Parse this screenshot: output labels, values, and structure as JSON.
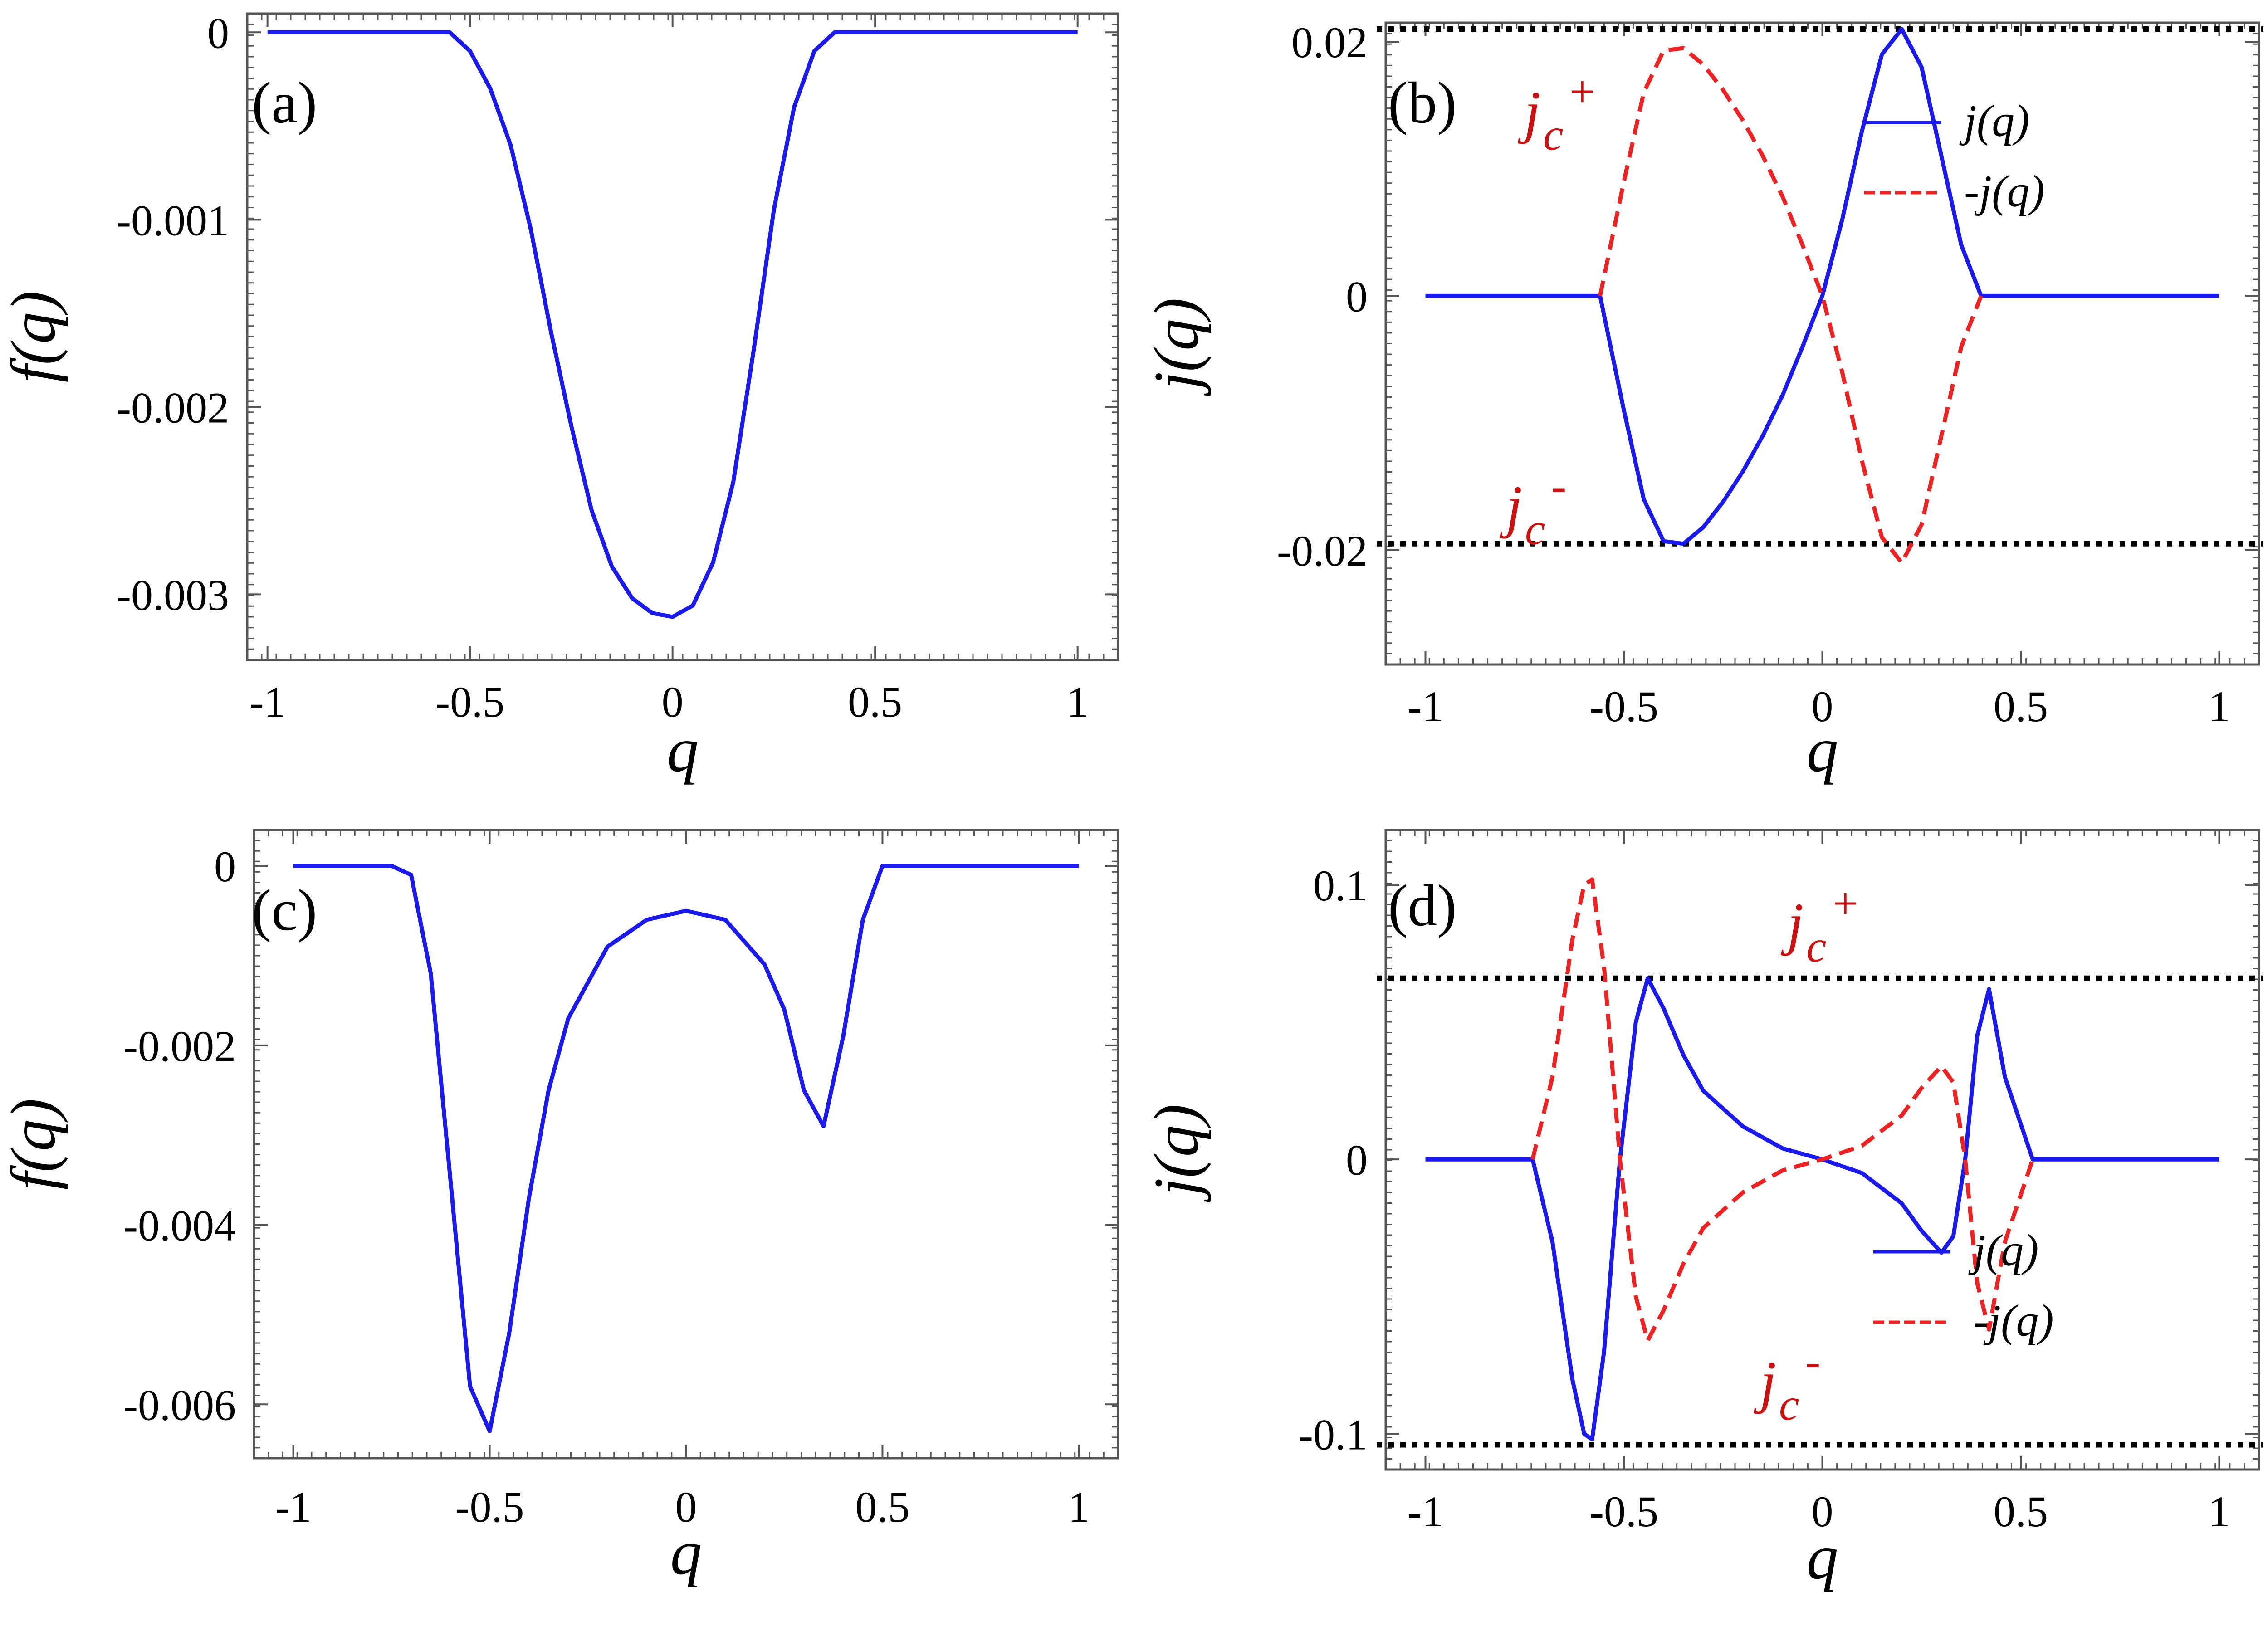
{
  "chart_data": [
    {
      "panel": "(a)",
      "type": "line",
      "xlabel": "q",
      "ylabel": "f(q)",
      "xlim": [
        -1.05,
        1.1
      ],
      "ylim": [
        -0.00335,
        0.0001
      ],
      "xticks": [
        -1,
        -0.5,
        0,
        0.5,
        1
      ],
      "xtick_labels": [
        "-1",
        "-0.5",
        "0",
        "0.5",
        "1"
      ],
      "yticks": [
        0,
        -0.001,
        -0.002,
        -0.003
      ],
      "ytick_labels": [
        "0",
        "-0.001",
        "-0.002",
        "-0.003"
      ],
      "color": "#1a1aee",
      "series": [
        {
          "name": "f(q)",
          "style": "solid",
          "color": "#1a1aee",
          "x": [
            -1,
            -0.7,
            -0.6,
            -0.55,
            -0.5,
            -0.45,
            -0.4,
            -0.35,
            -0.3,
            -0.25,
            -0.2,
            -0.15,
            -0.1,
            -0.05,
            0,
            0.05,
            0.1,
            0.15,
            0.2,
            0.25,
            0.3,
            0.35,
            0.4,
            0.5,
            0.7,
            1
          ],
          "y": [
            0,
            0,
            0,
            0,
            -0.0001,
            -0.0003,
            -0.0006,
            -0.00105,
            -0.0016,
            -0.0021,
            -0.00255,
            -0.00285,
            -0.00302,
            -0.0031,
            -0.00312,
            -0.00306,
            -0.00283,
            -0.0024,
            -0.0017,
            -0.00095,
            -0.0004,
            -0.0001,
            0,
            0,
            0,
            0
          ]
        }
      ]
    },
    {
      "panel": "(b)",
      "type": "line",
      "xlabel": "q",
      "ylabel": "j(q)",
      "xlim": [
        -1.1,
        1.1
      ],
      "ylim": [
        -0.029,
        0.0215
      ],
      "xticks": [
        -1,
        -0.5,
        0,
        0.5,
        1
      ],
      "xtick_labels": [
        "-1",
        "-0.5",
        "0",
        "0.5",
        "1"
      ],
      "yticks": [
        0.02,
        0,
        -0.02
      ],
      "ytick_labels": [
        "0.02",
        "0",
        "-0.02"
      ],
      "reference_lines": [
        {
          "name": "jc-plus",
          "y": 0.021,
          "label": "j",
          "sub": "c",
          "sup": "+"
        },
        {
          "name": "jc-minus",
          "y": -0.0195,
          "label": "j",
          "sub": "c",
          "sup": "-"
        }
      ],
      "legend": [
        "j(q)",
        "-j(q)"
      ],
      "series": [
        {
          "name": "j(q)",
          "style": "solid",
          "color": "#1a1aee",
          "x": [
            -1,
            -0.56,
            -0.5,
            -0.45,
            -0.4,
            -0.35,
            -0.3,
            -0.25,
            -0.2,
            -0.15,
            -0.1,
            -0.05,
            0,
            0.05,
            0.1,
            0.15,
            0.2,
            0.25,
            0.3,
            0.35,
            0.4,
            0.5,
            1
          ],
          "y": [
            0,
            0,
            -0.009,
            -0.016,
            -0.0193,
            -0.0195,
            -0.0182,
            -0.0162,
            -0.0138,
            -0.011,
            -0.0078,
            -0.004,
            0,
            0.006,
            0.013,
            0.019,
            0.021,
            0.018,
            0.011,
            0.004,
            0,
            0,
            0
          ]
        },
        {
          "name": "-j(q)",
          "style": "dashed",
          "color": "#ee2222",
          "x": [
            -0.56,
            -0.5,
            -0.45,
            -0.4,
            -0.35,
            -0.3,
            -0.25,
            -0.2,
            -0.15,
            -0.1,
            -0.05,
            0,
            0.05,
            0.1,
            0.15,
            0.2,
            0.25,
            0.3,
            0.35,
            0.4
          ],
          "y": [
            0,
            0.009,
            0.016,
            0.0193,
            0.0195,
            0.0182,
            0.0162,
            0.0138,
            0.011,
            0.0078,
            0.004,
            0,
            -0.006,
            -0.013,
            -0.019,
            -0.021,
            -0.018,
            -0.011,
            -0.004,
            0
          ]
        }
      ]
    },
    {
      "panel": "(c)",
      "type": "line",
      "xlabel": "q",
      "ylabel": "f(q)",
      "xlim": [
        -1.1,
        1.1
      ],
      "ylim": [
        -0.0066,
        0.0004
      ],
      "xticks": [
        -1,
        -0.5,
        0,
        0.5,
        1
      ],
      "xtick_labels": [
        "-1",
        "-0.5",
        "0",
        "0.5",
        "1"
      ],
      "yticks": [
        0,
        -0.002,
        -0.004,
        -0.006
      ],
      "ytick_labels": [
        "0",
        "-0.002",
        "-0.004",
        "-0.006"
      ],
      "series": [
        {
          "name": "f(q)",
          "style": "solid",
          "color": "#1a1aee",
          "x": [
            -1,
            -0.75,
            -0.7,
            -0.65,
            -0.6,
            -0.55,
            -0.5,
            -0.45,
            -0.4,
            -0.35,
            -0.3,
            -0.2,
            -0.1,
            0,
            0.1,
            0.2,
            0.25,
            0.3,
            0.35,
            0.4,
            0.45,
            0.5,
            0.55,
            1
          ],
          "y": [
            0,
            0,
            -0.0001,
            -0.0012,
            -0.0035,
            -0.0058,
            -0.0063,
            -0.0052,
            -0.0037,
            -0.0025,
            -0.0017,
            -0.0009,
            -0.0006,
            -0.0005,
            -0.0006,
            -0.0011,
            -0.0016,
            -0.0025,
            -0.0029,
            -0.0019,
            -0.0006,
            0,
            0,
            0
          ]
        }
      ]
    },
    {
      "panel": "(d)",
      "type": "line",
      "xlabel": "q",
      "ylabel": "j(q)",
      "xlim": [
        -1.1,
        1.1
      ],
      "ylim": [
        -0.113,
        0.12
      ],
      "xticks": [
        -1,
        -0.5,
        0,
        0.5,
        1
      ],
      "xtick_labels": [
        "-1",
        "-0.5",
        "0",
        "0.5",
        "1"
      ],
      "yticks": [
        0.1,
        0,
        -0.1
      ],
      "ytick_labels": [
        "0.1",
        "0",
        "-0.1"
      ],
      "reference_lines": [
        {
          "name": "jc-plus",
          "y": 0.066,
          "label": "j",
          "sub": "c",
          "sup": "+"
        },
        {
          "name": "jc-minus",
          "y": -0.104,
          "label": "j",
          "sub": "c",
          "sup": "-"
        }
      ],
      "legend": [
        "j(q)",
        "-j(q)"
      ],
      "series": [
        {
          "name": "j(q)",
          "style": "solid",
          "color": "#1a1aee",
          "x": [
            -1,
            -0.73,
            -0.68,
            -0.63,
            -0.6,
            -0.58,
            -0.55,
            -0.51,
            -0.47,
            -0.44,
            -0.4,
            -0.35,
            -0.3,
            -0.2,
            -0.1,
            0,
            0.1,
            0.2,
            0.25,
            0.3,
            0.33,
            0.36,
            0.39,
            0.42,
            0.46,
            0.53,
            1
          ],
          "y": [
            0,
            0,
            -0.03,
            -0.08,
            -0.1,
            -0.102,
            -0.07,
            0,
            0.05,
            0.066,
            0.055,
            0.038,
            0.025,
            0.012,
            0.004,
            0,
            -0.005,
            -0.016,
            -0.026,
            -0.034,
            -0.028,
            0,
            0.045,
            0.062,
            0.03,
            0,
            0
          ]
        },
        {
          "name": "-j(q)",
          "style": "dashed",
          "color": "#ee2222",
          "x": [
            -0.73,
            -0.68,
            -0.63,
            -0.6,
            -0.58,
            -0.55,
            -0.51,
            -0.47,
            -0.44,
            -0.4,
            -0.35,
            -0.3,
            -0.2,
            -0.1,
            0,
            0.1,
            0.2,
            0.25,
            0.3,
            0.33,
            0.36,
            0.39,
            0.42,
            0.46,
            0.53
          ],
          "y": [
            0,
            0.03,
            0.08,
            0.1,
            0.102,
            0.07,
            0,
            -0.05,
            -0.066,
            -0.055,
            -0.038,
            -0.025,
            -0.012,
            -0.004,
            0,
            0.005,
            0.016,
            0.026,
            0.034,
            0.028,
            0,
            -0.045,
            -0.062,
            -0.03,
            0
          ]
        }
      ]
    }
  ]
}
